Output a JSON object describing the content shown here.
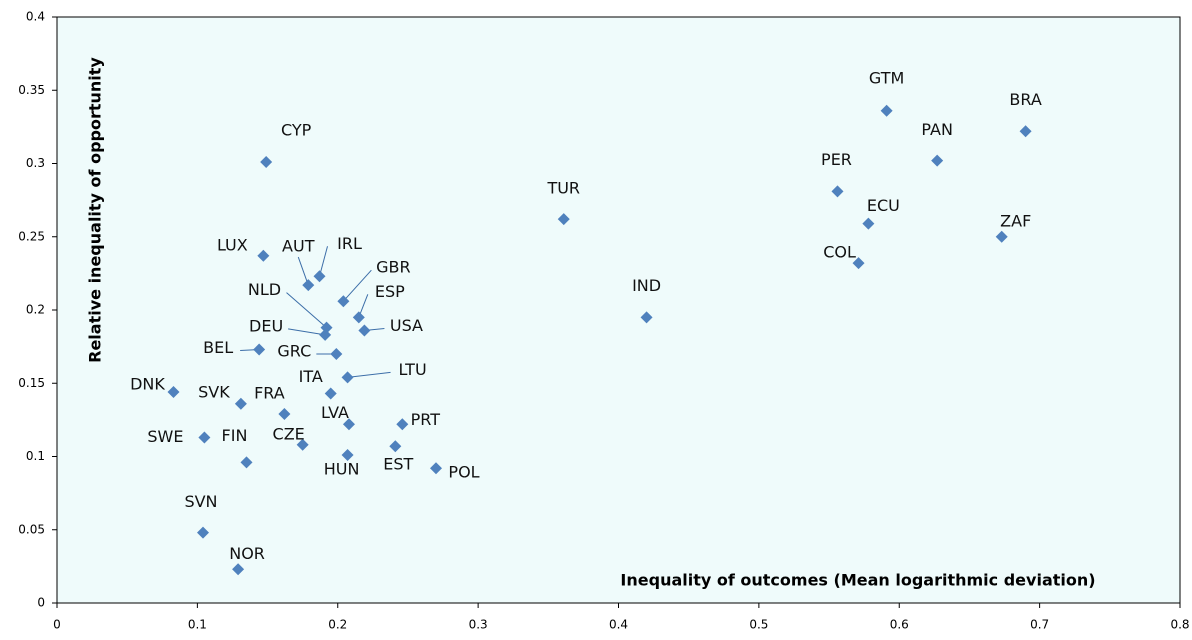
{
  "chart_data": {
    "type": "scatter",
    "xlabel": "Inequality of outcomes (Mean logarithmic deviation)",
    "ylabel": "Relative inequality of opportunity",
    "xlim": [
      0,
      0.8
    ],
    "xticks": [
      0,
      0.1,
      0.2,
      0.3,
      0.4,
      0.5,
      0.6,
      0.7,
      0.8
    ],
    "ylim": [
      0,
      0.4
    ],
    "yticks": [
      0,
      0.05,
      0.1,
      0.15,
      0.2,
      0.25,
      0.3,
      0.35,
      0.4
    ],
    "color": "#4f81bd",
    "labels": [
      "GTM",
      "BRA",
      "PAN",
      "PER",
      "ECU",
      "ZAF",
      "COL",
      "TUR",
      "IND",
      "CYP",
      "LUX",
      "AUT",
      "IRL",
      "GBR",
      "ESP",
      "NLD",
      "DEU",
      "USA",
      "BEL",
      "GRC",
      "LTU",
      "ITA",
      "DNK",
      "SVK",
      "FRA",
      "LVA",
      "PRT",
      "SWE",
      "FIN",
      "CZE",
      "HUN",
      "EST",
      "POL",
      "SVN",
      "NOR"
    ],
    "x": [
      0.591,
      0.69,
      0.627,
      0.556,
      0.578,
      0.673,
      0.571,
      0.361,
      0.42,
      0.149,
      0.147,
      0.179,
      0.187,
      0.204,
      0.215,
      0.192,
      0.191,
      0.219,
      0.144,
      0.199,
      0.207,
      0.195,
      0.083,
      0.131,
      0.162,
      0.208,
      0.246,
      0.105,
      0.135,
      0.175,
      0.207,
      0.241,
      0.27,
      0.104,
      0.129
    ],
    "y": [
      0.336,
      0.322,
      0.302,
      0.281,
      0.259,
      0.25,
      0.232,
      0.262,
      0.195,
      0.301,
      0.237,
      0.217,
      0.223,
      0.206,
      0.195,
      0.188,
      0.183,
      0.186,
      0.173,
      0.17,
      0.154,
      0.143,
      0.144,
      0.136,
      0.129,
      0.122,
      0.122,
      0.113,
      0.096,
      0.108,
      0.101,
      0.107,
      0.092,
      0.048,
      0.023
    ]
  }
}
